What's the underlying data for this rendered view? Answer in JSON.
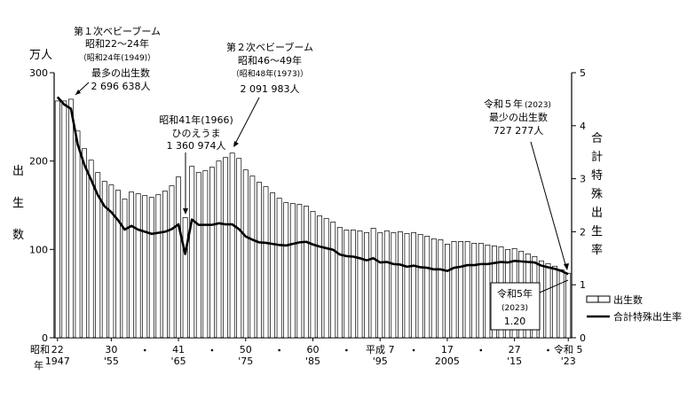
{
  "chart_data": {
    "type": "bar+line",
    "left_axis": {
      "unit": "万人",
      "label_chars": [
        "出",
        "生",
        "数"
      ],
      "ylim": [
        0,
        300
      ],
      "ticks": [
        "0",
        "100",
        "200",
        "300"
      ]
    },
    "right_axis": {
      "label_chars": [
        "合",
        "計",
        "特",
        "殊",
        "出",
        "生",
        "率"
      ],
      "ylim": [
        0,
        5
      ],
      "ticks": [
        "0",
        "1",
        "2",
        "3",
        "4",
        "5"
      ]
    },
    "x_label_top": [
      {
        "year": 1947,
        "text": "22"
      },
      {
        "year": 1955,
        "text": "30"
      },
      {
        "year": 1965,
        "text": "41"
      },
      {
        "year": 1975,
        "text": "50"
      },
      {
        "year": 1985,
        "text": "60"
      },
      {
        "year": 1995,
        "text": "平成 7"
      },
      {
        "year": 2005,
        "text": "17"
      },
      {
        "year": 2015,
        "text": "27"
      },
      {
        "year": 2023,
        "text": "令和 5"
      }
    ],
    "x_label_bottom": [
      {
        "year": 1947,
        "text": "1947"
      },
      {
        "year": 1955,
        "text": "'55"
      },
      {
        "year": 1965,
        "text": "'65"
      },
      {
        "year": 1975,
        "text": "'75"
      },
      {
        "year": 1985,
        "text": "'85"
      },
      {
        "year": 1995,
        "text": "'95"
      },
      {
        "year": 2005,
        "text": "2005"
      },
      {
        "year": 2015,
        "text": "'15"
      },
      {
        "year": 2023,
        "text": "'23"
      }
    ],
    "x_dots": [
      1960,
      1970,
      1980,
      1990,
      2000,
      2010,
      2020
    ],
    "era_prefix": "昭和",
    "era_prefix2": "年",
    "years": [
      1947,
      1948,
      1949,
      1950,
      1951,
      1952,
      1953,
      1954,
      1955,
      1956,
      1957,
      1958,
      1959,
      1960,
      1961,
      1962,
      1963,
      1964,
      1965,
      1966,
      1967,
      1968,
      1969,
      1970,
      1971,
      1972,
      1973,
      1974,
      1975,
      1976,
      1977,
      1978,
      1979,
      1980,
      1981,
      1982,
      1983,
      1984,
      1985,
      1986,
      1987,
      1988,
      1989,
      1990,
      1991,
      1992,
      1993,
      1994,
      1995,
      1996,
      1997,
      1998,
      1999,
      2000,
      2001,
      2002,
      2003,
      2004,
      2005,
      2006,
      2007,
      2008,
      2009,
      2010,
      2011,
      2012,
      2013,
      2014,
      2015,
      2016,
      2017,
      2018,
      2019,
      2020,
      2021,
      2022,
      2023
    ],
    "series": [
      {
        "name": "出生数",
        "type": "bar",
        "axis": "left",
        "values": [
          268,
          268,
          270,
          234,
          214,
          201,
          187,
          177,
          173,
          167,
          157,
          165,
          163,
          161,
          159,
          162,
          166,
          172,
          182,
          136,
          194,
          187,
          189,
          193,
          200,
          204,
          209,
          203,
          190,
          183,
          176,
          171,
          164,
          158,
          153,
          152,
          151,
          149,
          143,
          138,
          135,
          131,
          125,
          122,
          122,
          121,
          119,
          124,
          119,
          121,
          119,
          120,
          118,
          119,
          117,
          115,
          112,
          111,
          106,
          109,
          109,
          109,
          107,
          107,
          105,
          104,
          103,
          100,
          101,
          98,
          95,
          92,
          87,
          84,
          81,
          77,
          73
        ]
      },
      {
        "name": "合計特殊出生率",
        "type": "line",
        "axis": "right",
        "values": [
          4.54,
          4.4,
          4.32,
          3.65,
          3.26,
          2.98,
          2.69,
          2.48,
          2.37,
          2.22,
          2.04,
          2.11,
          2.04,
          2.0,
          1.96,
          1.98,
          2.0,
          2.05,
          2.14,
          1.58,
          2.23,
          2.13,
          2.13,
          2.13,
          2.16,
          2.14,
          2.14,
          2.05,
          1.91,
          1.85,
          1.8,
          1.79,
          1.77,
          1.75,
          1.74,
          1.77,
          1.8,
          1.81,
          1.76,
          1.72,
          1.69,
          1.66,
          1.57,
          1.54,
          1.53,
          1.5,
          1.46,
          1.5,
          1.42,
          1.43,
          1.39,
          1.38,
          1.34,
          1.36,
          1.33,
          1.32,
          1.29,
          1.29,
          1.26,
          1.32,
          1.34,
          1.37,
          1.37,
          1.39,
          1.39,
          1.41,
          1.43,
          1.42,
          1.45,
          1.44,
          1.43,
          1.42,
          1.36,
          1.33,
          1.3,
          1.26,
          1.2
        ]
      }
    ],
    "annotations": {
      "boom1": {
        "title": "第１次ベビーブーム",
        "period": "昭和22～24年",
        "sub": "（昭和24年(1949)）",
        "note": "最多の出生数",
        "value": "2 696 638人"
      },
      "hinoe": {
        "line1": "昭和41年(1966)",
        "line2": "ひのえうま",
        "value": "1 360 974人"
      },
      "boom2": {
        "title": "第２次ベビーブーム",
        "period": "昭和46～49年",
        "sub": "（昭和48年(1973)）",
        "value": "2 091 983人"
      },
      "latest": {
        "line1": "令和５年",
        "line1_small": "(2023)",
        "note": "最少の出生数",
        "value": "727 277人"
      },
      "tfr_box": {
        "line1": "令和5年",
        "line2": "(2023)",
        "line3": "1.20"
      }
    },
    "legend": {
      "position": "right",
      "items": [
        "出生数",
        "合計特殊出生率"
      ]
    }
  }
}
